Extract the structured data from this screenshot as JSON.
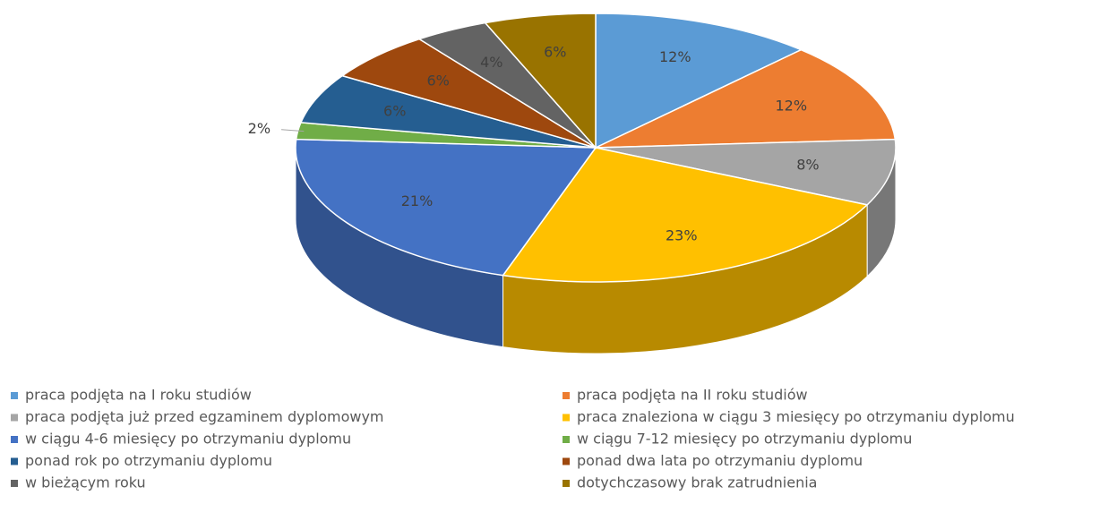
{
  "chart_data": {
    "type": "pie3d",
    "categories": [
      "praca podjęta na I roku studiów",
      "praca podjęta na II roku studiów",
      "praca podjęta już przed egzaminem dyplomowym",
      "praca znaleziona w ciągu 3 miesięcy po otrzymaniu dyplomu",
      "w ciągu 4-6 miesięcy po otrzymaniu dyplomu",
      "w ciągu 7-12 miesięcy po otrzymaniu dyplomu",
      "ponad rok po otrzymaniu dyplomu",
      "ponad dwa lata po otrzymaniu dyplomu",
      "w bieżącym roku",
      "dotychczasowy brak zatrudnienia"
    ],
    "values": [
      12,
      12,
      8,
      23,
      21,
      2,
      6,
      6,
      4,
      6
    ],
    "value_labels": [
      "12%",
      "12%",
      "8%",
      "23%",
      "21%",
      "2%",
      "6%",
      "6%",
      "4%",
      "6%"
    ],
    "colors": [
      "#5b9bd5",
      "#ed7d31",
      "#a5a5a5",
      "#ffc000",
      "#4472c4",
      "#70ad47",
      "#255e91",
      "#9e480e",
      "#636363",
      "#997300"
    ],
    "legend": "bottom"
  }
}
